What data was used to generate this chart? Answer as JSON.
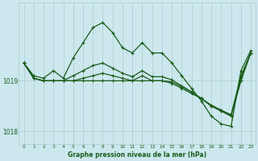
{
  "title": "Graphe pression niveau de la mer (hPa)",
  "background_color": "#cce8ee",
  "plot_bg_color": "#cce8ee",
  "grid_color": "#aacccc",
  "line_color": "#1a5c1a",
  "xlim": [
    -0.5,
    23.5
  ],
  "ylim": [
    1017.75,
    1020.55
  ],
  "yticks": [
    1018,
    1019
  ],
  "xticks": [
    0,
    1,
    2,
    3,
    4,
    5,
    6,
    7,
    8,
    9,
    10,
    11,
    12,
    13,
    14,
    15,
    16,
    17,
    18,
    19,
    20,
    21,
    22,
    23
  ],
  "series_active": [
    1019.35,
    1019.1,
    1019.05,
    1019.2,
    1019.05,
    1019.45,
    1019.75,
    1020.05,
    1020.15,
    1019.95,
    1019.65,
    1019.55,
    1019.75,
    1019.55,
    1019.55,
    1019.35,
    1019.1,
    1018.85,
    1018.6,
    1018.3,
    1018.15,
    1018.1,
    1019.2,
    1019.6
  ],
  "series_ref1": [
    1019.35,
    1019.05,
    1019.0,
    1019.0,
    1019.0,
    1019.0,
    1019.0,
    1019.0,
    1019.0,
    1019.0,
    1019.0,
    1019.0,
    1019.0,
    1019.0,
    1019.0,
    1018.95,
    1018.85,
    1018.75,
    1018.65,
    1018.5,
    1018.4,
    1018.3,
    1019.0,
    1019.55
  ],
  "series_ref2": [
    1019.35,
    1019.05,
    1019.0,
    1019.0,
    1019.0,
    1019.0,
    1019.05,
    1019.1,
    1019.15,
    1019.1,
    1019.05,
    1019.0,
    1019.1,
    1019.0,
    1019.0,
    1018.98,
    1018.88,
    1018.78,
    1018.65,
    1018.52,
    1018.42,
    1018.32,
    1019.05,
    1019.55
  ],
  "series_ref3": [
    1019.35,
    1019.05,
    1019.0,
    1019.0,
    1019.0,
    1019.1,
    1019.2,
    1019.3,
    1019.35,
    1019.25,
    1019.15,
    1019.08,
    1019.2,
    1019.08,
    1019.08,
    1019.02,
    1018.9,
    1018.78,
    1018.65,
    1018.5,
    1018.42,
    1018.33,
    1019.1,
    1019.55
  ]
}
